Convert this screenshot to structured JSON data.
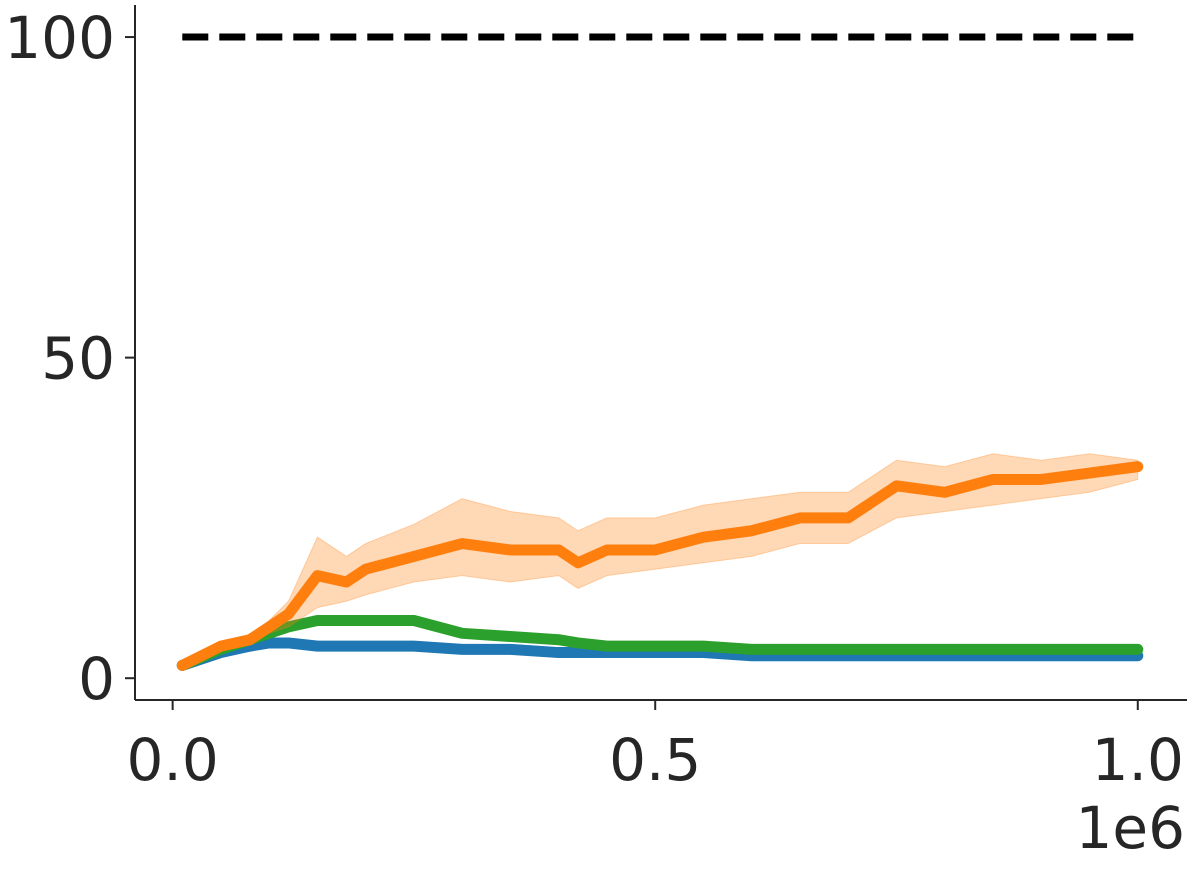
{
  "chart_data": {
    "type": "line",
    "x": [
      0.01,
      0.05,
      0.08,
      0.1,
      0.12,
      0.15,
      0.18,
      0.2,
      0.25,
      0.3,
      0.35,
      0.4,
      0.42,
      0.45,
      0.5,
      0.55,
      0.6,
      0.65,
      0.7,
      0.75,
      0.8,
      0.85,
      0.9,
      0.95,
      1.0
    ],
    "series": [
      {
        "color": "#1f77b4",
        "values": [
          2,
          4,
          5,
          5.5,
          5.5,
          5,
          5,
          5,
          5,
          4.5,
          4.5,
          4,
          4,
          4,
          4,
          4,
          3.5,
          3.5,
          3.5,
          3.5,
          3.5,
          3.5,
          3.5,
          3.5,
          3.5
        ]
      },
      {
        "color": "#2ca02c",
        "values": [
          2,
          4.5,
          6,
          7,
          8,
          9,
          9,
          9,
          9,
          7,
          6.5,
          6,
          5.5,
          5,
          5,
          5,
          4.5,
          4.5,
          4.5,
          4.5,
          4.5,
          4.5,
          4.5,
          4.5,
          4.5
        ]
      },
      {
        "color": "#ff7f0e",
        "values": [
          2,
          5,
          6,
          8,
          10,
          16,
          15,
          17,
          19,
          21,
          20,
          20,
          18,
          20,
          20,
          22,
          23,
          25,
          25,
          30,
          29,
          31,
          31,
          32,
          33
        ],
        "lower": [
          1.5,
          4.5,
          5.5,
          7,
          8,
          11,
          12,
          13,
          15,
          16,
          15,
          16,
          14,
          16,
          17,
          18,
          19,
          21,
          21,
          25,
          26,
          27,
          28,
          29,
          31
        ],
        "upper": [
          2.5,
          5.5,
          6.5,
          9,
          12,
          22,
          19,
          21,
          24,
          28,
          26,
          25,
          23,
          25,
          25,
          27,
          28,
          29,
          29,
          34,
          33,
          35,
          34,
          35,
          34
        ]
      }
    ],
    "hlines": [
      {
        "value": 100,
        "color": "#000000",
        "style": "dashed"
      }
    ],
    "xlim": [
      -0.039,
      1.051
    ],
    "xticks": [
      {
        "value": 0,
        "label": "0.0"
      },
      0.5,
      {
        "value": 1,
        "label": "1.0"
      }
    ],
    "x_offset_label": "1e6",
    "ylim": [
      -3.4,
      105
    ],
    "yticks": [
      0,
      50,
      100
    ]
  }
}
